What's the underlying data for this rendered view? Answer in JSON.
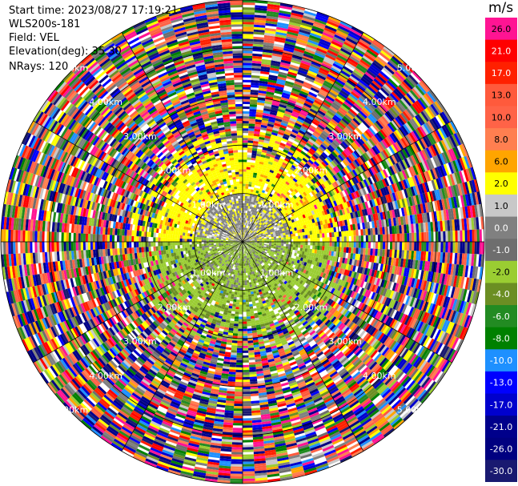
{
  "info": {
    "start_time": "Start time: 2023/08/27 17:19:21",
    "instrument": "WLS200s-181",
    "field": "Field: VEL",
    "elevation": "Elevation(deg): 35.30",
    "nrays": "NRays: 120"
  },
  "range_rings": [
    {
      "km": 1.0,
      "label": "1.00km"
    },
    {
      "km": 2.0,
      "label": "2.00km"
    },
    {
      "km": 3.0,
      "label": "3.00km"
    },
    {
      "km": 4.0,
      "label": "4.00km"
    },
    {
      "km": 5.0,
      "label": "5.00km"
    }
  ],
  "max_range_km": 5.0,
  "colorbar": {
    "unit": "m/s",
    "bins": [
      {
        "label": "26.0",
        "color": "#ff1493"
      },
      {
        "label": "21.0",
        "color": "#ff0000"
      },
      {
        "label": "17.0",
        "color": "#ff2000"
      },
      {
        "label": "13.0",
        "color": "#ff5a3c"
      },
      {
        "label": "10.0",
        "color": "#ff6347"
      },
      {
        "label": "8.0",
        "color": "#ff7f50"
      },
      {
        "label": "6.0",
        "color": "#ffa500"
      },
      {
        "label": "2.0",
        "color": "#ffff00"
      },
      {
        "label": "1.0",
        "color": "#c8c8c8"
      },
      {
        "label": "0.0",
        "color": "#808080"
      },
      {
        "label": "-1.0",
        "color": "#6e6e6e"
      },
      {
        "label": "-2.0",
        "color": "#9acd32"
      },
      {
        "label": "-4.0",
        "color": "#6b8e23"
      },
      {
        "label": "-6.0",
        "color": "#228b22"
      },
      {
        "label": "-8.0",
        "color": "#008000"
      },
      {
        "label": "-10.0",
        "color": "#1e90ff"
      },
      {
        "label": "-13.0",
        "color": "#0000ff"
      },
      {
        "label": "-17.0",
        "color": "#0000cd"
      },
      {
        "label": "-21.0",
        "color": "#00008b"
      },
      {
        "label": "-26.0",
        "color": "#000080"
      },
      {
        "label": "-30.0",
        "color": "#191970"
      }
    ]
  }
}
